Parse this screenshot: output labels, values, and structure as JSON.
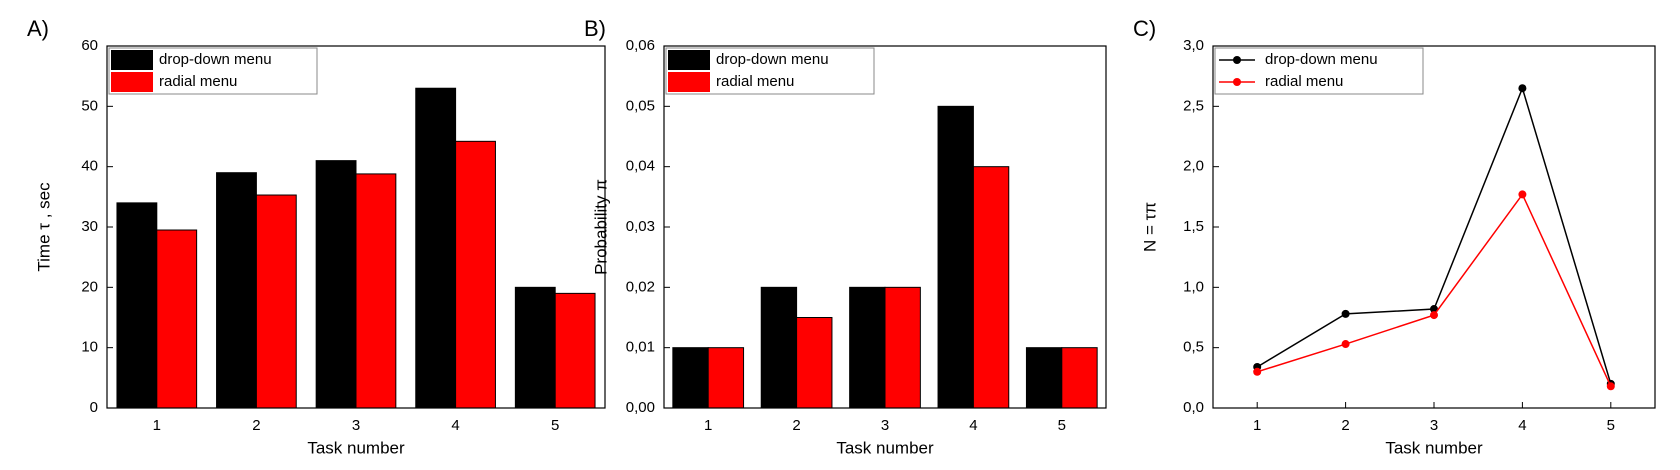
{
  "chart_data": [
    {
      "type": "bar",
      "label": "A)",
      "xlabel": "Task number",
      "ylabel": "Time τ , sec",
      "categories": [
        "1",
        "2",
        "3",
        "4",
        "5"
      ],
      "series": [
        {
          "name": "drop-down menu",
          "color": "#000000",
          "values": [
            34,
            39,
            41,
            53,
            20
          ]
        },
        {
          "name": "radial menu",
          "color": "#ff0000",
          "values": [
            29.5,
            35.3,
            38.8,
            44.2,
            19
          ]
        }
      ],
      "ylim": [
        0,
        60
      ],
      "yticks": [
        0,
        10,
        20,
        30,
        40,
        50,
        60
      ],
      "legend": "upper left"
    },
    {
      "type": "bar",
      "label": "B)",
      "xlabel": "Task number",
      "ylabel": "Probability  π",
      "categories": [
        "1",
        "2",
        "3",
        "4",
        "5"
      ],
      "series": [
        {
          "name": "drop-down menu",
          "color": "#000000",
          "values": [
            0.01,
            0.02,
            0.02,
            0.05,
            0.01
          ]
        },
        {
          "name": "radial menu",
          "color": "#ff0000",
          "values": [
            0.01,
            0.015,
            0.02,
            0.04,
            0.01
          ]
        }
      ],
      "ylim": [
        0,
        0.06
      ],
      "yticks": [
        {
          "value": 0,
          "label": "0,00"
        },
        {
          "value": 0.01,
          "label": "0,01"
        },
        {
          "value": 0.02,
          "label": "0,02"
        },
        {
          "value": 0.03,
          "label": "0,03"
        },
        {
          "value": 0.04,
          "label": "0,04"
        },
        {
          "value": 0.05,
          "label": "0,05"
        },
        {
          "value": 0.06,
          "label": "0,06"
        }
      ],
      "legend": "upper left"
    },
    {
      "type": "line",
      "label": "C)",
      "xlabel": "Task number",
      "ylabel": "N = τπ",
      "categories": [
        "1",
        "2",
        "3",
        "4",
        "5"
      ],
      "series": [
        {
          "name": "drop-down menu",
          "color": "#000000",
          "values": [
            0.34,
            0.78,
            0.82,
            2.65,
            0.2
          ]
        },
        {
          "name": "radial menu",
          "color": "#ff0000",
          "values": [
            0.3,
            0.53,
            0.77,
            1.77,
            0.18
          ]
        }
      ],
      "ylim": [
        0,
        3
      ],
      "yticks": [
        {
          "value": 0,
          "label": "0,0"
        },
        {
          "value": 0.5,
          "label": "0,5"
        },
        {
          "value": 1,
          "label": "1,0"
        },
        {
          "value": 1.5,
          "label": "1,5"
        },
        {
          "value": 2,
          "label": "2,0"
        },
        {
          "value": 2.5,
          "label": "2,5"
        },
        {
          "value": 3,
          "label": "3,0"
        }
      ],
      "legend": "upper left"
    }
  ]
}
